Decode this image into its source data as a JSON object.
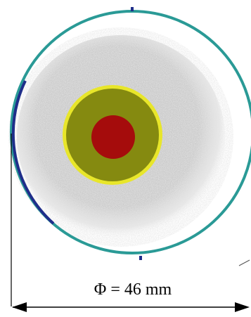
{
  "diagram": {
    "dimension_label": "Φ = 46 mm",
    "colors": {
      "outer_ring": "#2a9a96",
      "outer_ring_left_arc": "#1f2e8a",
      "halo": "#c3c3c3",
      "yellow_ring": "#e8e62a",
      "olive_zone": "#858a10",
      "red_core": "#a50c0c",
      "dimension_line": "#000000"
    }
  }
}
